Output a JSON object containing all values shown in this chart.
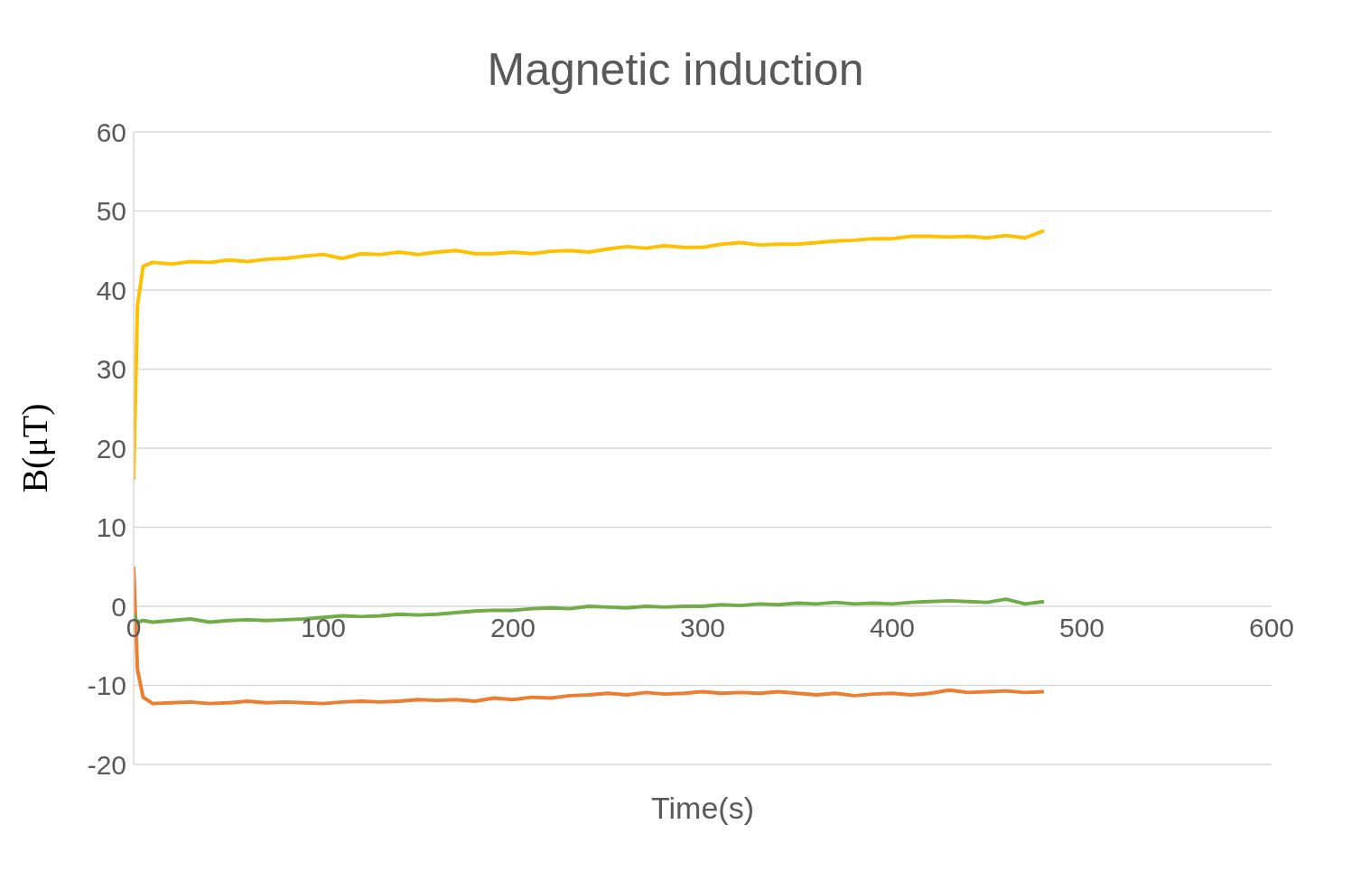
{
  "chart_data": {
    "type": "line",
    "title": "Magnetic induction",
    "xlabel": "Time(s)",
    "ylabel": "B(μT)",
    "x": [
      0,
      2,
      5,
      10,
      20,
      30,
      40,
      50,
      60,
      70,
      80,
      90,
      100,
      110,
      120,
      130,
      140,
      150,
      160,
      170,
      180,
      190,
      200,
      210,
      220,
      230,
      240,
      250,
      260,
      270,
      280,
      290,
      300,
      310,
      320,
      330,
      340,
      350,
      360,
      370,
      380,
      390,
      400,
      410,
      420,
      430,
      440,
      450,
      460,
      470,
      480
    ],
    "series": [
      {
        "color": "#ffc000",
        "values": [
          16,
          38,
          43,
          43.5,
          43.3,
          43.6,
          43.5,
          43.8,
          43.6,
          43.9,
          44,
          44.3,
          44.5,
          44,
          44.6,
          44.5,
          44.8,
          44.5,
          44.8,
          45,
          44.6,
          44.6,
          44.8,
          44.6,
          44.9,
          45,
          44.8,
          45.2,
          45.5,
          45.3,
          45.6,
          45.4,
          45.4,
          45.8,
          46,
          45.7,
          45.8,
          45.8,
          46,
          46.2,
          46.3,
          46.5,
          46.5,
          46.8,
          46.8,
          46.7,
          46.8,
          46.6,
          46.9,
          46.6,
          47.5
        ]
      },
      {
        "color": "#ed7d31",
        "values": [
          5,
          -8,
          -11.5,
          -12.3,
          -12.2,
          -12.1,
          -12.3,
          -12.2,
          -12,
          -12.2,
          -12.1,
          -12.2,
          -12.3,
          -12.1,
          -12,
          -12.1,
          -12,
          -11.8,
          -11.9,
          -11.8,
          -12,
          -11.6,
          -11.8,
          -11.5,
          -11.6,
          -11.3,
          -11.2,
          -11,
          -11.2,
          -10.9,
          -11.1,
          -11,
          -10.8,
          -11,
          -10.9,
          -11,
          -10.8,
          -11,
          -11.2,
          -11,
          -11.3,
          -11.1,
          -11,
          -11.2,
          -11,
          -10.6,
          -10.9,
          -10.8,
          -10.7,
          -10.9,
          -10.8
        ]
      },
      {
        "color": "#70ad47",
        "values": [
          -1,
          -2,
          -1.8,
          -2,
          -1.8,
          -1.6,
          -2,
          -1.8,
          -1.7,
          -1.8,
          -1.7,
          -1.6,
          -1.4,
          -1.2,
          -1.3,
          -1.2,
          -1,
          -1.1,
          -1,
          -0.8,
          -0.6,
          -0.5,
          -0.5,
          -0.3,
          -0.2,
          -0.3,
          0,
          -0.1,
          -0.2,
          0,
          -0.1,
          0,
          0,
          0.2,
          0.1,
          0.3,
          0.2,
          0.4,
          0.3,
          0.5,
          0.3,
          0.4,
          0.3,
          0.5,
          0.6,
          0.7,
          0.6,
          0.5,
          0.9,
          0.3,
          0.6
        ]
      }
    ],
    "xlim": [
      0,
      600
    ],
    "xticks": [
      0,
      100,
      200,
      300,
      400,
      500,
      600
    ],
    "ylim": [
      -20,
      60
    ],
    "yticks": [
      -20,
      -10,
      0,
      10,
      20,
      30,
      40,
      50,
      60
    ],
    "grid": "y"
  }
}
